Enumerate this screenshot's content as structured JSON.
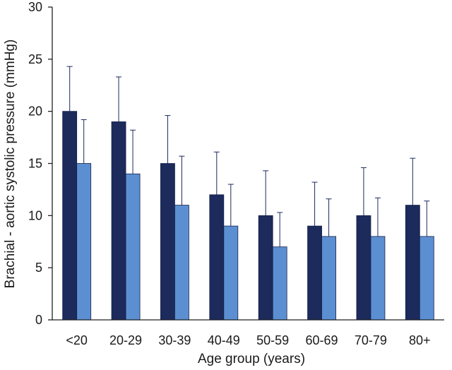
{
  "chart_data": {
    "type": "bar",
    "title": "",
    "xlabel": "Age group (years)",
    "ylabel": "Brachial - aortic systolic pressure (mmHg)",
    "ylim": [
      0,
      30
    ],
    "yticks": [
      0,
      5,
      10,
      15,
      20,
      25,
      30
    ],
    "grid": false,
    "legend": "none",
    "categories": [
      "<20",
      "20-29",
      "30-39",
      "40-49",
      "50-59",
      "60-69",
      "70-79",
      "80+"
    ],
    "series": [
      {
        "color": "#1c2a5c",
        "values": [
          20,
          19,
          15,
          12,
          10,
          9,
          10,
          11
        ],
        "error_upper": [
          24.3,
          23.3,
          19.6,
          16.1,
          14.3,
          13.2,
          14.6,
          15.5
        ]
      },
      {
        "color": "#5b8fd1",
        "values": [
          15,
          14,
          11,
          9,
          7,
          8,
          8,
          8
        ],
        "error_upper": [
          19.2,
          18.2,
          15.7,
          13.0,
          10.3,
          11.6,
          11.7,
          11.4
        ]
      }
    ]
  }
}
